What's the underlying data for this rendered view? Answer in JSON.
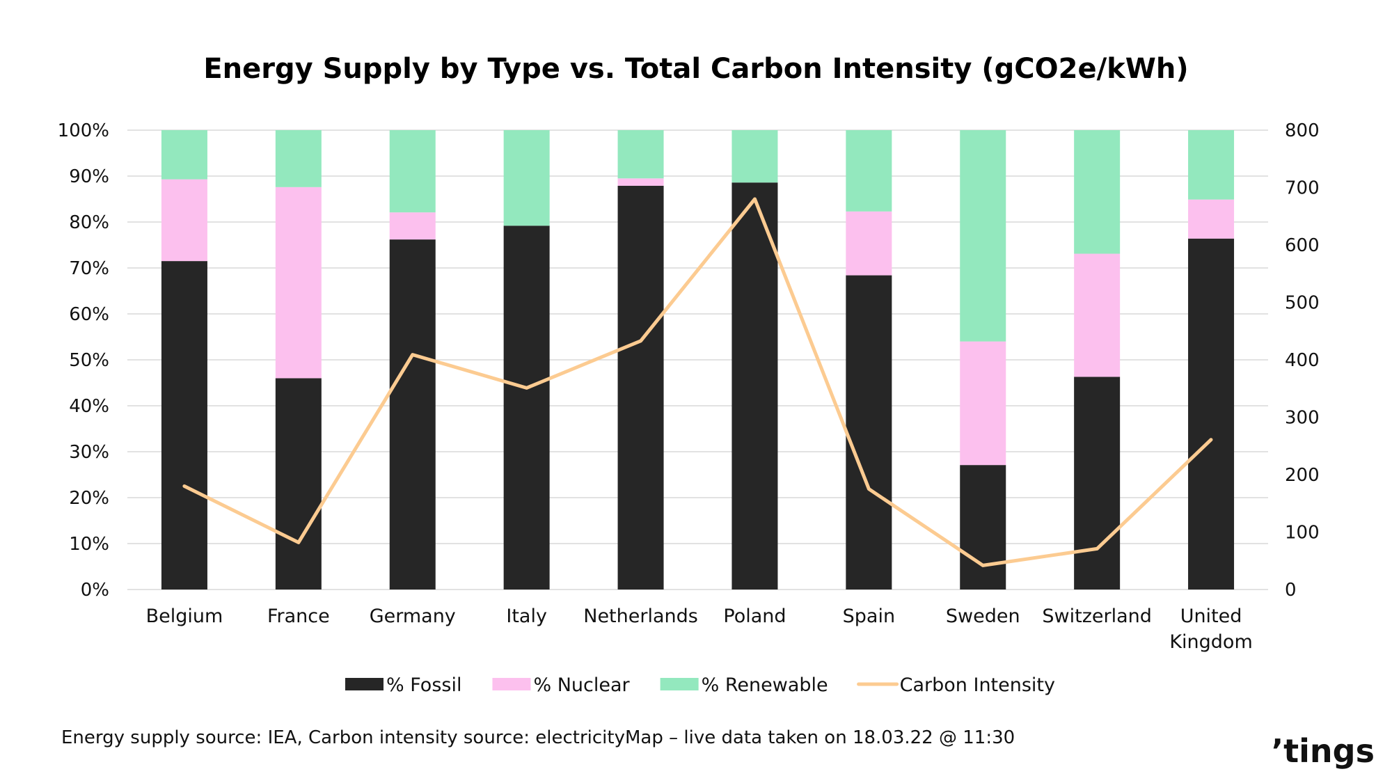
{
  "chart_data": {
    "type": "bar",
    "stacked": true,
    "title": "Energy Supply by Type vs. Total Carbon Intensity (gCO2e/kWh)",
    "categories": [
      "Belgium",
      "France",
      "Germany",
      "Italy",
      "Netherlands",
      "Poland",
      "Spain",
      "Sweden",
      "Switzerland",
      "United Kingdom"
    ],
    "series": [
      {
        "name": "% Fossil",
        "type": "bar",
        "axis": "left",
        "color": "#262626",
        "values": [
          71.5,
          46,
          76.2,
          79.2,
          87.9,
          88.6,
          68.4,
          27.1,
          46.3,
          76.4
        ]
      },
      {
        "name": "% Nuclear",
        "type": "bar",
        "axis": "left",
        "color": "#fcc0ee",
        "values": [
          17.8,
          41.6,
          5.9,
          0,
          1.6,
          0,
          13.9,
          26.9,
          26.8,
          8.5
        ]
      },
      {
        "name": "% Renewable",
        "type": "bar",
        "axis": "left",
        "color": "#93e8be",
        "values": [
          10.7,
          12.4,
          17.9,
          20.8,
          10.5,
          11.4,
          17.7,
          46,
          26.9,
          15.1
        ]
      },
      {
        "name": "Carbon Intensity",
        "type": "line",
        "axis": "right",
        "color": "#fccb91",
        "values": [
          180,
          82,
          409,
          351,
          433,
          680,
          175,
          42,
          71,
          261
        ]
      }
    ],
    "y_left": {
      "min": 0,
      "max": 100,
      "ticks": [
        "0%",
        "10%",
        "20%",
        "30%",
        "40%",
        "50%",
        "60%",
        "70%",
        "80%",
        "90%",
        "100%"
      ]
    },
    "y_right": {
      "min": 0,
      "max": 800,
      "ticks": [
        "0",
        "100",
        "200",
        "300",
        "400",
        "500",
        "600",
        "700",
        "800"
      ]
    },
    "grid": true,
    "legend_position": "bottom"
  },
  "footer": {
    "source_note": "Energy supply source: IEA, Carbon intensity source: electricityMap – live data taken on 18.03.22 @ 11:30",
    "logo_text": "’tings"
  }
}
